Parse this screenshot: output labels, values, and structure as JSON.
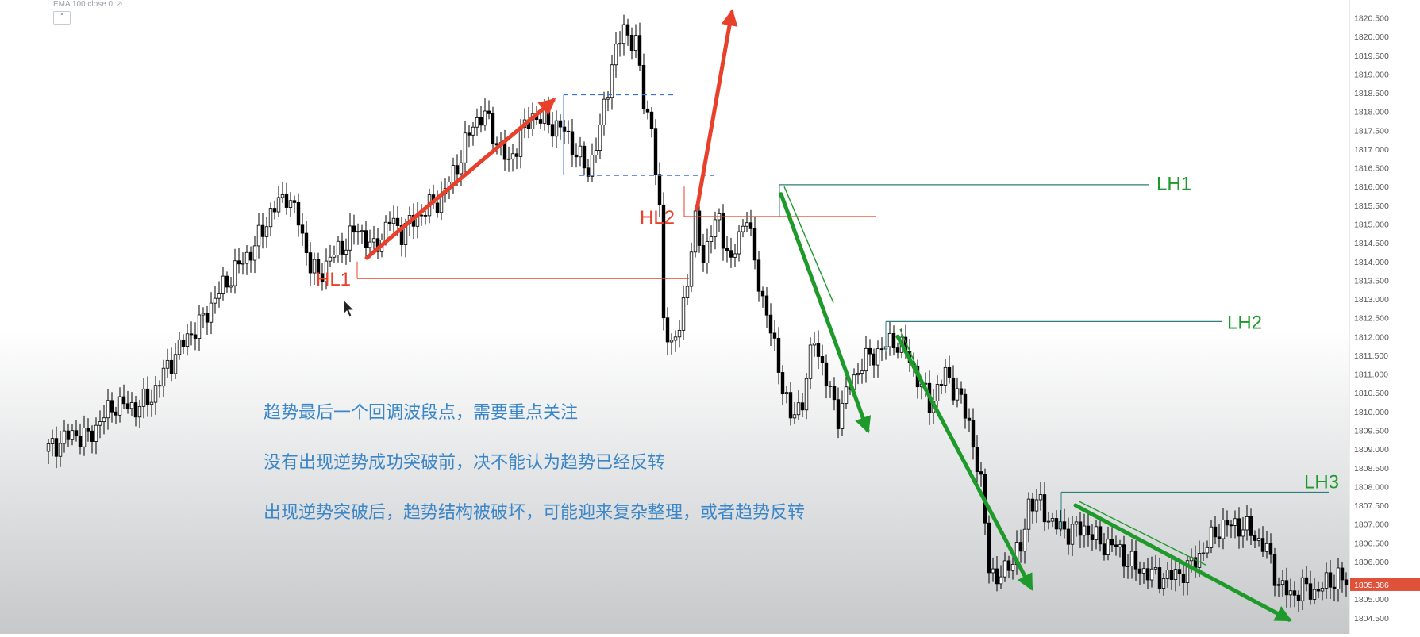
{
  "indicator": {
    "legend": "EMA 100 close 0",
    "hide_icon": "eye-off-icon",
    "collapse_icon": "chevron-up-icon"
  },
  "annotations": {
    "notes": [
      "趋势最后一个回调波段点，需要重点关注",
      "没有出现逆势成功突破前，决不能认为趋势已经反转",
      "出现逆势突破后，趋势结构被破坏，可能迎来复杂整理，或者趋势反转"
    ],
    "labels": [
      {
        "text": "HL1",
        "color": "#e8402a"
      },
      {
        "text": "HL2",
        "color": "#e8402a"
      },
      {
        "text": "LH1",
        "color": "#1d9a2a"
      },
      {
        "text": "LH2",
        "color": "#1d9a2a"
      },
      {
        "text": "LH3",
        "color": "#1d9a2a"
      }
    ],
    "level_lines": [
      {
        "name": "HL1",
        "price": 1813.55,
        "color": "#e8402a"
      },
      {
        "name": "HL2",
        "price": 1815.2,
        "color": "#e8402a"
      },
      {
        "name": "LH1",
        "price": 1816.05,
        "color": "#2e7d7d"
      },
      {
        "name": "LH2",
        "price": 1812.4,
        "color": "#2e7d7d"
      },
      {
        "name": "LH3",
        "price": 1807.85,
        "color": "#2e7d7d"
      }
    ]
  },
  "chart_data": {
    "type": "candlestick",
    "ylim": [
      1804.2,
      1820.85
    ],
    "y_ticks": [
      "1820.500",
      "1820.000",
      "1819.500",
      "1819.000",
      "1818.500",
      "1818.000",
      "1817.500",
      "1817.000",
      "1816.500",
      "1816.000",
      "1815.500",
      "1815.000",
      "1814.500",
      "1814.000",
      "1813.500",
      "1813.000",
      "1812.500",
      "1812.000",
      "1811.500",
      "1811.000",
      "1810.500",
      "1810.000",
      "1809.500",
      "1809.000",
      "1808.500",
      "1808.000",
      "1807.500",
      "1807.000",
      "1806.500",
      "1806.000",
      "1805.500",
      "1805.000",
      "1804.500"
    ],
    "last_price": "1805.386",
    "colors": {
      "up": "#ffffff",
      "down": "#000000",
      "wick": "#000000",
      "price_tag": "#e0513a",
      "up_arrow": "#e8402a",
      "down_arrow": "#1d9a2a",
      "range_box": "#3b6fe0"
    },
    "close_path": [
      [
        0,
        1809.0
      ],
      [
        6,
        1809.4
      ],
      [
        10,
        1809.3
      ],
      [
        14,
        1809.9
      ],
      [
        17,
        1810.2
      ],
      [
        22,
        1810.1
      ],
      [
        26,
        1810.4
      ],
      [
        30,
        1811.2
      ],
      [
        35,
        1812.0
      ],
      [
        38,
        1812.3
      ],
      [
        43,
        1813.2
      ],
      [
        48,
        1813.9
      ],
      [
        52,
        1814.4
      ],
      [
        56,
        1815.3
      ],
      [
        60,
        1815.8
      ],
      [
        63,
        1815.1
      ],
      [
        66,
        1813.9
      ],
      [
        68,
        1813.6
      ],
      [
        71,
        1814.1
      ],
      [
        74,
        1814.4
      ],
      [
        78,
        1814.9
      ],
      [
        82,
        1814.3
      ],
      [
        86,
        1815.1
      ],
      [
        89,
        1814.8
      ],
      [
        94,
        1815.3
      ],
      [
        99,
        1815.7
      ],
      [
        104,
        1816.8
      ],
      [
        107,
        1817.7
      ],
      [
        110,
        1817.9
      ],
      [
        113,
        1817.2
      ],
      [
        116,
        1816.6
      ],
      [
        119,
        1817.4
      ],
      [
        122,
        1817.9
      ],
      [
        126,
        1817.7
      ],
      [
        130,
        1817.5
      ],
      [
        133,
        1816.9
      ],
      [
        136,
        1816.4
      ],
      [
        139,
        1817.5
      ],
      [
        142,
        1819.3
      ],
      [
        145,
        1820.2
      ],
      [
        148,
        1819.8
      ],
      [
        150,
        1818.3
      ],
      [
        152,
        1817.6
      ],
      [
        154,
        1815.2
      ],
      [
        155,
        1812.6
      ],
      [
        157,
        1811.7
      ],
      [
        159,
        1812.2
      ],
      [
        161,
        1813.6
      ],
      [
        163,
        1815.0
      ],
      [
        165,
        1814.1
      ],
      [
        167,
        1814.8
      ],
      [
        169,
        1815.1
      ],
      [
        172,
        1813.9
      ],
      [
        174,
        1814.7
      ],
      [
        176,
        1815.3
      ],
      [
        178,
        1813.9
      ],
      [
        181,
        1812.6
      ],
      [
        184,
        1811.2
      ],
      [
        187,
        1809.8
      ],
      [
        190,
        1810.3
      ],
      [
        193,
        1812.0
      ],
      [
        196,
        1810.8
      ],
      [
        199,
        1809.9
      ],
      [
        202,
        1810.7
      ],
      [
        205,
        1811.3
      ],
      [
        209,
        1811.6
      ],
      [
        213,
        1811.9
      ],
      [
        216,
        1811.6
      ],
      [
        219,
        1810.9
      ],
      [
        222,
        1810.2
      ],
      [
        226,
        1811.0
      ],
      [
        229,
        1810.5
      ],
      [
        232,
        1809.7
      ],
      [
        235,
        1808.0
      ],
      [
        237,
        1806.0
      ],
      [
        239,
        1805.4
      ],
      [
        242,
        1806.0
      ],
      [
        245,
        1806.3
      ],
      [
        247,
        1807.6
      ],
      [
        250,
        1807.5
      ],
      [
        253,
        1807.0
      ],
      [
        257,
        1806.8
      ],
      [
        261,
        1806.9
      ],
      [
        265,
        1806.5
      ],
      [
        269,
        1806.4
      ],
      [
        272,
        1806.0
      ],
      [
        275,
        1805.8
      ],
      [
        279,
        1805.6
      ],
      [
        283,
        1805.6
      ],
      [
        287,
        1805.8
      ],
      [
        291,
        1806.3
      ],
      [
        295,
        1806.9
      ],
      [
        299,
        1807.0
      ],
      [
        303,
        1806.8
      ],
      [
        307,
        1806.3
      ],
      [
        310,
        1805.4
      ],
      [
        313,
        1805.1
      ],
      [
        316,
        1805.3
      ],
      [
        319,
        1805.2
      ],
      [
        322,
        1805.4
      ],
      [
        325,
        1805.6
      ],
      [
        327,
        1805.386
      ]
    ]
  }
}
